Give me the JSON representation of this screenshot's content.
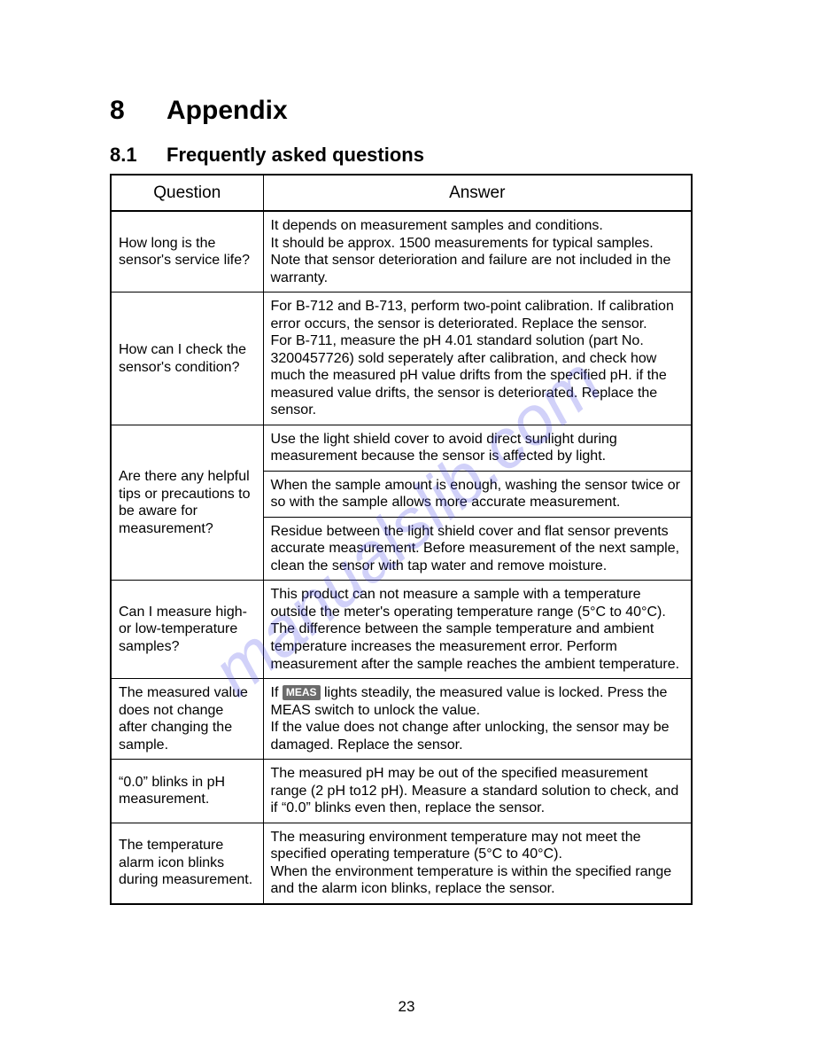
{
  "watermark": "manualslib.com",
  "heading": {
    "num": "8",
    "title": "Appendix"
  },
  "subheading": {
    "num": "8.1",
    "title": "Frequently asked questions"
  },
  "columns": {
    "question": "Question",
    "answer": "Answer"
  },
  "meas_badge": "MEAS",
  "rows": {
    "r1": {
      "q": "How long is the sensor's service life?",
      "a": "It depends on measurement samples and conditions.\nIt should be approx. 1500 measurements for typical samples. Note that sensor deterioration and failure are not included in the warranty."
    },
    "r2": {
      "q": "How can I check the sensor's condition?",
      "a": "For B-712 and B-713, perform two-point calibration. If calibration error occurs, the sensor is deteriorated. Replace the sensor.\nFor B-711, measure the pH 4.01 standard solution (part No. 3200457726) sold seperately after calibration, and check how much the measured pH value drifts from the specified pH. if the measured value drifts, the sensor is deteriorated. Replace the sensor."
    },
    "r3": {
      "q": "Are there any helpful tips or precautions to be aware for measurement?",
      "a1": "Use the light shield cover to avoid direct sunlight during measurement because the sensor is affected by light.",
      "a2": "When the sample amount is enough, washing the sensor twice or so with the sample allows more accurate measurement.",
      "a3": "Residue between the light shield cover and flat sensor prevents accurate measurement. Before measurement of the next sample, clean the sensor with tap water and remove moisture."
    },
    "r4": {
      "q": "Can I measure high- or low-temperature samples?",
      "a": "This product can not measure a sample with a temperature outside the meter's operating temperature range (5°C to 40°C). The difference between the sample temperature and ambient temperature increases the measurement error. Perform measurement after the sample reaches the ambient temperature."
    },
    "r5": {
      "q": "The measured value does not change after changing the sample.",
      "a_pre": "If ",
      "a_post": " lights steadily, the measured value is locked. Press the MEAS switch to unlock the value.\nIf the value does not change after unlocking, the sensor may be damaged. Replace the sensor."
    },
    "r6": {
      "q": "“0.0” blinks in pH measurement.",
      "a": "The measured pH may be out of the specified measurement range (2 pH to12 pH). Measure a standard solution to check, and if “0.0” blinks even then, replace the sensor."
    },
    "r7": {
      "q": "The temperature alarm icon blinks during measurement.",
      "a": "The measuring environment temperature may not meet the specified operating temperature (5°C to 40°C).\nWhen the environment temperature is within the specified range and the alarm icon blinks, replace the sensor."
    }
  },
  "page_number": "23"
}
